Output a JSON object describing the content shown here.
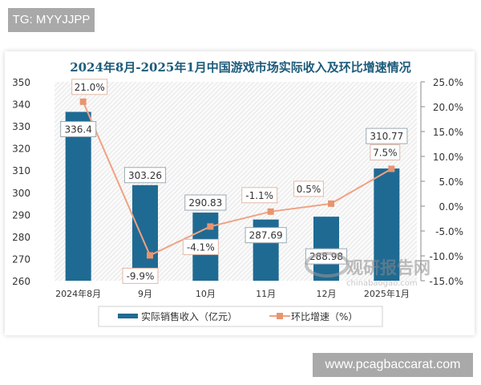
{
  "watermarks": {
    "top_left": "TG: MYYJJPP",
    "bottom_right": "www.pcagbaccarat.com",
    "logo_text": "观研报告网",
    "logo_url_text": "chinabaogao.com"
  },
  "chart_data": {
    "type": "bar+line",
    "title": "2024年8月-2025年1月中国游戏市场实际收入及环比增速情况",
    "categories": [
      "2024年8月",
      "9月",
      "10月",
      "11月",
      "12月",
      "2025年1月"
    ],
    "series": [
      {
        "name": "实际销售收入（亿元）",
        "type": "bar",
        "axis": "left",
        "color": "#1f6a93",
        "values": [
          336.4,
          303.26,
          290.83,
          287.69,
          288.98,
          310.77
        ],
        "labels": [
          "336.4",
          "303.26",
          "290.83",
          "287.69",
          "288.98",
          "310.77"
        ]
      },
      {
        "name": "环比增速（%）",
        "type": "line",
        "axis": "right",
        "color": "#f0a283",
        "values": [
          21.0,
          -9.9,
          -4.1,
          -1.1,
          0.5,
          7.5
        ],
        "labels": [
          "21.0%",
          "-9.9%",
          "-4.1%",
          "-1.1%",
          "0.5%",
          "7.5%"
        ]
      }
    ],
    "y_left": {
      "min": 260,
      "max": 350,
      "ticks": [
        "260",
        "270",
        "280",
        "290",
        "300",
        "310",
        "320",
        "330",
        "340",
        "350"
      ]
    },
    "y_right": {
      "min": -15,
      "max": 25,
      "ticks": [
        "-15.0%",
        "-10.0%",
        "-5.0%",
        "0.0%",
        "5.0%",
        "10.0%",
        "15.0%",
        "20.0%",
        "25.0%"
      ]
    },
    "legend_position": "bottom",
    "grid": false
  }
}
